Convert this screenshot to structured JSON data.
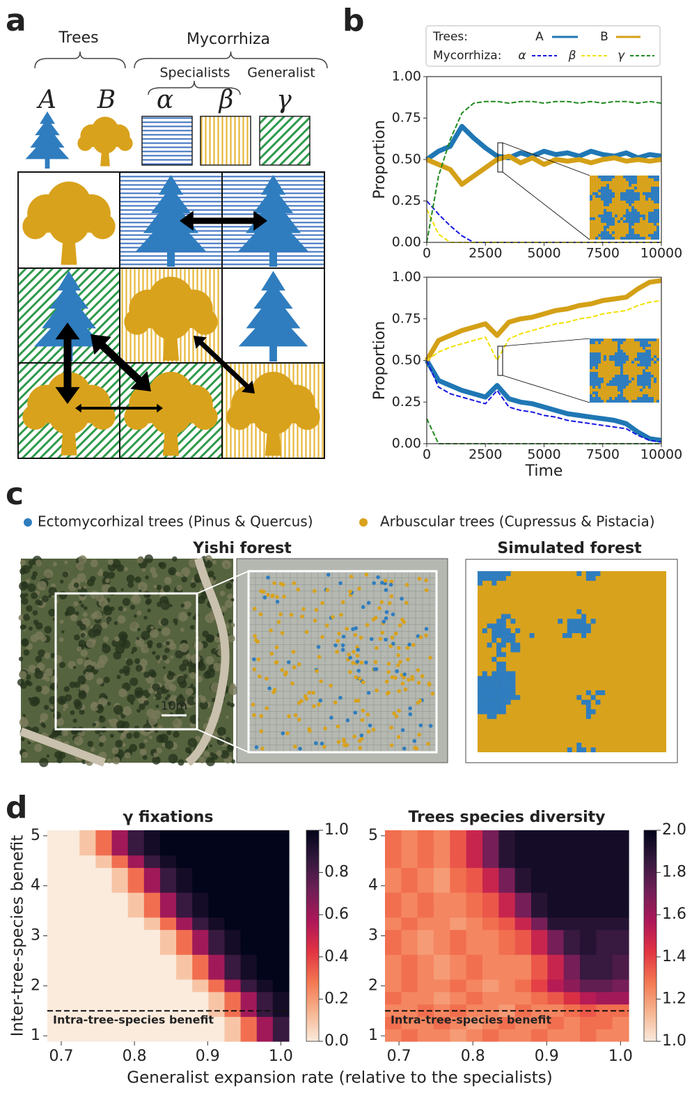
{
  "panel_labels": [
    "a",
    "b",
    "c",
    "d"
  ],
  "panel_a": {
    "trees_label": "Trees",
    "mycorrhiza_label": "Mycorrhiza",
    "specialists_label": "Specialists",
    "generalist_label": "Generalist",
    "symbols": [
      "A",
      "B",
      "α",
      "β",
      "γ"
    ]
  },
  "panel_c": {
    "legend": [
      "Ectomycorhizal trees (Pinus & Quercus)",
      "Arbuscular trees (Cupressus & Pistacia)"
    ],
    "legend_colors": [
      "#2f7dbf",
      "#d9a21c"
    ],
    "titles": [
      "Yishi forest",
      "Simulated forest"
    ],
    "scale_label": "10m"
  },
  "chart_data": [
    {
      "type": "line",
      "ylabel": "Proportion",
      "legend_titles": [
        "Trees:",
        "Mycorrhiza:"
      ],
      "x": [
        0,
        500,
        1000,
        1500,
        2000,
        2500,
        3000,
        3500,
        4000,
        4500,
        5000,
        5500,
        6000,
        6500,
        7000,
        7500,
        8000,
        8500,
        9000,
        9500,
        10000
      ],
      "xlim": [
        0,
        10000
      ],
      "xticks": [
        0,
        2500,
        5000,
        7500,
        10000
      ],
      "ylim": [
        0,
        1
      ],
      "yticks": [
        {
          "value": 0,
          "label": "0.00"
        },
        0.25,
        {
          "value": 0.5,
          "label": "0.50"
        },
        0.75,
        {
          "value": 1,
          "label": "1.00"
        }
      ],
      "series": [
        {
          "name": "A",
          "color": "#1f77b4",
          "linestyle": "solid",
          "values": [
            0.5,
            0.55,
            0.58,
            0.7,
            0.63,
            0.57,
            0.52,
            0.51,
            0.54,
            0.52,
            0.55,
            0.53,
            0.54,
            0.52,
            0.55,
            0.53,
            0.52,
            0.54,
            0.51,
            0.53,
            0.52
          ]
        },
        {
          "name": "B",
          "color": "#d4a017",
          "linestyle": "solid",
          "values": [
            0.5,
            0.47,
            0.44,
            0.35,
            0.4,
            0.45,
            0.5,
            0.52,
            0.48,
            0.51,
            0.47,
            0.5,
            0.49,
            0.5,
            0.48,
            0.5,
            0.51,
            0.49,
            0.5,
            0.49,
            0.5
          ]
        },
        {
          "name": "α",
          "color": "#1515e0",
          "linestyle": "dashed",
          "values": [
            0.25,
            0.17,
            0.1,
            0.04,
            0,
            0,
            0,
            0,
            0,
            0,
            0,
            0,
            0,
            0,
            0,
            0,
            0,
            0,
            0,
            0,
            0
          ]
        },
        {
          "name": "β",
          "color": "#f2e000",
          "linestyle": "dashed",
          "values": [
            0.2,
            0.05,
            0,
            0,
            0,
            0,
            0,
            0,
            0,
            0,
            0,
            0,
            0,
            0,
            0,
            0,
            0,
            0,
            0,
            0,
            0
          ]
        },
        {
          "name": "γ",
          "color": "#1f8a1f",
          "linestyle": "dashed",
          "values": [
            0,
            0.4,
            0.62,
            0.78,
            0.84,
            0.85,
            0.85,
            0.84,
            0.85,
            0.85,
            0.84,
            0.85,
            0.85,
            0.84,
            0.85,
            0.84,
            0.85,
            0.85,
            0.84,
            0.85,
            0.84
          ]
        }
      ]
    },
    {
      "type": "line",
      "ylabel": "Proportion",
      "xlabel": "Time",
      "x": [
        0,
        500,
        1000,
        1500,
        2000,
        2500,
        3000,
        3500,
        4000,
        4500,
        5000,
        5500,
        6000,
        6500,
        7000,
        7500,
        8000,
        8500,
        9000,
        9500,
        10000
      ],
      "xlim": [
        0,
        10000
      ],
      "xticks": [
        0,
        2500,
        5000,
        7500,
        10000
      ],
      "ylim": [
        0,
        1
      ],
      "yticks": [
        {
          "value": 0,
          "label": "0.00"
        },
        0.25,
        {
          "value": 0.5,
          "label": "0.50"
        },
        0.75,
        {
          "value": 1,
          "label": "1.00"
        }
      ],
      "series": [
        {
          "color": "#1f77b4",
          "linestyle": "solid",
          "values": [
            0.5,
            0.38,
            0.35,
            0.32,
            0.3,
            0.28,
            0.35,
            0.27,
            0.25,
            0.24,
            0.22,
            0.2,
            0.18,
            0.17,
            0.16,
            0.15,
            0.14,
            0.12,
            0.07,
            0.03,
            0.02
          ]
        },
        {
          "color": "#d4a017",
          "linestyle": "solid",
          "values": [
            0.5,
            0.62,
            0.65,
            0.68,
            0.7,
            0.72,
            0.65,
            0.73,
            0.75,
            0.76,
            0.78,
            0.8,
            0.81,
            0.83,
            0.84,
            0.86,
            0.87,
            0.88,
            0.93,
            0.97,
            0.98
          ]
        },
        {
          "color": "#1515e0",
          "linestyle": "dashed",
          "values": [
            0.5,
            0.34,
            0.3,
            0.28,
            0.26,
            0.24,
            0.32,
            0.22,
            0.2,
            0.19,
            0.17,
            0.16,
            0.14,
            0.13,
            0.12,
            0.11,
            0.1,
            0.09,
            0.05,
            0.02,
            0.01
          ]
        },
        {
          "color": "#f2e000",
          "linestyle": "dashed",
          "values": [
            0.5,
            0.55,
            0.58,
            0.6,
            0.62,
            0.64,
            0.5,
            0.63,
            0.66,
            0.68,
            0.7,
            0.72,
            0.73,
            0.75,
            0.76,
            0.78,
            0.79,
            0.8,
            0.83,
            0.85,
            0.86
          ]
        },
        {
          "color": "#1f8a1f",
          "linestyle": "dashed",
          "values": [
            0.15,
            0,
            0,
            0,
            0,
            0,
            0,
            0,
            0,
            0,
            0,
            0,
            0,
            0,
            0,
            0,
            0,
            0,
            0,
            0,
            0
          ]
        }
      ]
    },
    {
      "type": "heatmap",
      "title": "γ fixations",
      "ylabel": "Inter-tree-species benefit",
      "xlabel": "Generalist expansion rate (relative to the specialists)",
      "xlim": [
        0.681,
        1.011
      ],
      "xticks": [
        0.7,
        0.8,
        0.9,
        {
          "value": 1,
          "label": "1.0"
        }
      ],
      "ylim": [
        0.89,
        5.11
      ],
      "yticks": [
        1,
        2,
        3,
        4,
        5
      ],
      "zlim": [
        0,
        1
      ],
      "zticks": [
        {
          "value": 0,
          "label": "0.0"
        },
        0.2,
        0.4,
        0.6,
        0.8,
        {
          "value": 1,
          "label": "1.0"
        }
      ],
      "colormap": [
        "#faebdd",
        "#f6b48f",
        "#f37651",
        "#e13342",
        "#ae1759",
        "#701f57",
        "#35193e",
        "#03051a"
      ],
      "hline": {
        "value": 1.5,
        "label": "Intra-tree-species benefit"
      },
      "z": [
        [
          0,
          0,
          0,
          0,
          0,
          0,
          0,
          0,
          0,
          0,
          0,
          0.1,
          0.3,
          0.6,
          0.85
        ],
        [
          0,
          0,
          0,
          0,
          0,
          0,
          0,
          0,
          0,
          0,
          0,
          0.1,
          0.3,
          0.6,
          0.85
        ],
        [
          0,
          0,
          0,
          0,
          0,
          0,
          0,
          0,
          0,
          0,
          0.1,
          0.3,
          0.6,
          0.85,
          0.95
        ],
        [
          0,
          0,
          0,
          0,
          0,
          0,
          0,
          0,
          0,
          0,
          0.1,
          0.3,
          0.6,
          0.85,
          0.95
        ],
        [
          0,
          0,
          0,
          0,
          0,
          0,
          0,
          0,
          0,
          0.1,
          0.3,
          0.6,
          0.85,
          0.95,
          1
        ],
        [
          0,
          0,
          0,
          0,
          0,
          0,
          0,
          0,
          0.1,
          0.3,
          0.6,
          0.85,
          0.95,
          1,
          1
        ],
        [
          0,
          0,
          0,
          0,
          0,
          0,
          0,
          0,
          0.1,
          0.3,
          0.6,
          0.85,
          0.95,
          1,
          1
        ],
        [
          0,
          0,
          0,
          0,
          0,
          0,
          0,
          0.1,
          0.3,
          0.6,
          0.85,
          0.95,
          1,
          1,
          1
        ],
        [
          0,
          0,
          0,
          0,
          0,
          0,
          0,
          0.1,
          0.3,
          0.6,
          0.85,
          0.95,
          1,
          1,
          1
        ],
        [
          0,
          0,
          0,
          0,
          0,
          0,
          0.1,
          0.3,
          0.6,
          0.85,
          0.95,
          1,
          1,
          1,
          1
        ],
        [
          0,
          0,
          0,
          0,
          0,
          0.1,
          0.3,
          0.6,
          0.85,
          0.95,
          1,
          1,
          1,
          1,
          1
        ],
        [
          0,
          0,
          0,
          0,
          0,
          0.1,
          0.3,
          0.6,
          0.85,
          0.95,
          1,
          1,
          1,
          1,
          1
        ],
        [
          0,
          0,
          0,
          0,
          0.1,
          0.3,
          0.6,
          0.85,
          0.95,
          1,
          1,
          1,
          1,
          1,
          1
        ],
        [
          0,
          0,
          0,
          0,
          0.1,
          0.3,
          0.6,
          0.85,
          0.95,
          1,
          1,
          1,
          1,
          1,
          1
        ],
        [
          0,
          0,
          0,
          0.1,
          0.3,
          0.6,
          0.85,
          0.95,
          1,
          1,
          1,
          1,
          1,
          1,
          1
        ],
        [
          0,
          0,
          0.1,
          0.3,
          0.6,
          0.85,
          0.95,
          1,
          1,
          1,
          1,
          1,
          1,
          1,
          1
        ],
        [
          0,
          0,
          0.1,
          0.3,
          0.6,
          0.85,
          0.95,
          1,
          1,
          1,
          1,
          1,
          1,
          1,
          1
        ]
      ]
    },
    {
      "type": "heatmap",
      "title": "Trees species diversity",
      "xlim": [
        0.681,
        1.011
      ],
      "xticks": [
        0.7,
        0.8,
        0.9,
        {
          "value": 1,
          "label": "1.0"
        }
      ],
      "ylim": [
        0.89,
        5.11
      ],
      "yticks": [
        1,
        2,
        3,
        4,
        5
      ],
      "zlim": [
        1,
        2
      ],
      "zticks": [
        {
          "value": 1,
          "label": "1.0"
        },
        1.2,
        1.4,
        1.6,
        1.8,
        {
          "value": 2,
          "label": "2.0"
        }
      ],
      "colormap": [
        "#faebdd",
        "#f6b48f",
        "#f37651",
        "#e13342",
        "#ae1759",
        "#701f57",
        "#35193e",
        "#03051a"
      ],
      "hline": {
        "value": 1.5,
        "label": "Intra-tree-species benefit"
      },
      "z": [
        [
          1.25,
          1.3,
          1.25,
          1.25,
          1.2,
          1.25,
          1.3,
          1.25,
          1.25,
          1.3,
          1.25,
          1.25,
          1.3,
          1.25,
          1.25
        ],
        [
          1.3,
          1.25,
          1.25,
          1.3,
          1.25,
          1.2,
          1.25,
          1.3,
          1.25,
          1.25,
          1.3,
          1.25,
          1.3,
          1.3,
          1.25
        ],
        [
          1.25,
          1.25,
          1.3,
          1.25,
          1.3,
          1.25,
          1.25,
          1.2,
          1.3,
          1.25,
          1.25,
          1.3,
          1.35,
          1.3,
          1.3
        ],
        [
          1.3,
          1.25,
          1.25,
          1.2,
          1.25,
          1.3,
          1.25,
          1.25,
          1.25,
          1.3,
          1.35,
          1.45,
          1.55,
          1.6,
          1.6
        ],
        [
          1.25,
          1.3,
          1.25,
          1.25,
          1.3,
          1.25,
          1.2,
          1.25,
          1.3,
          1.4,
          1.55,
          1.65,
          1.75,
          1.75,
          1.7
        ],
        [
          1.25,
          1.3,
          1.25,
          1.2,
          1.25,
          1.3,
          1.25,
          1.25,
          1.25,
          1.35,
          1.5,
          1.7,
          1.85,
          1.85,
          1.8
        ],
        [
          1.25,
          1.3,
          1.25,
          1.2,
          1.25,
          1.3,
          1.25,
          1.25,
          1.25,
          1.35,
          1.5,
          1.7,
          1.85,
          1.85,
          1.8
        ],
        [
          1.3,
          1.25,
          1.2,
          1.25,
          1.3,
          1.25,
          1.25,
          1.3,
          1.35,
          1.5,
          1.7,
          1.85,
          1.9,
          1.85,
          1.85
        ],
        [
          1.3,
          1.25,
          1.2,
          1.25,
          1.3,
          1.25,
          1.25,
          1.3,
          1.35,
          1.5,
          1.7,
          1.85,
          1.9,
          1.85,
          1.85
        ],
        [
          1.25,
          1.3,
          1.25,
          1.25,
          1.2,
          1.25,
          1.3,
          1.35,
          1.5,
          1.7,
          1.9,
          1.9,
          1.9,
          1.9,
          1.9
        ],
        [
          1.3,
          1.25,
          1.3,
          1.25,
          1.25,
          1.3,
          1.35,
          1.5,
          1.7,
          1.9,
          1.95,
          1.95,
          1.95,
          1.95,
          1.95
        ],
        [
          1.3,
          1.25,
          1.3,
          1.25,
          1.25,
          1.3,
          1.35,
          1.5,
          1.7,
          1.9,
          1.95,
          1.95,
          1.95,
          1.95,
          1.95
        ],
        [
          1.25,
          1.3,
          1.25,
          1.2,
          1.3,
          1.35,
          1.5,
          1.7,
          1.9,
          1.95,
          1.95,
          1.95,
          1.95,
          1.95,
          1.95
        ],
        [
          1.25,
          1.3,
          1.25,
          1.2,
          1.3,
          1.35,
          1.5,
          1.7,
          1.9,
          1.95,
          1.95,
          1.95,
          1.95,
          1.95,
          1.95
        ],
        [
          1.3,
          1.25,
          1.3,
          1.25,
          1.35,
          1.5,
          1.7,
          1.9,
          1.95,
          1.95,
          1.95,
          1.95,
          1.95,
          1.95,
          1.95
        ],
        [
          1.3,
          1.25,
          1.3,
          1.25,
          1.35,
          1.5,
          1.7,
          1.9,
          1.95,
          1.95,
          1.95,
          1.95,
          1.95,
          1.95,
          1.95
        ],
        [
          1.3,
          1.25,
          1.3,
          1.25,
          1.35,
          1.5,
          1.7,
          1.9,
          1.95,
          1.95,
          1.95,
          1.95,
          1.95,
          1.95,
          1.95
        ]
      ]
    }
  ]
}
